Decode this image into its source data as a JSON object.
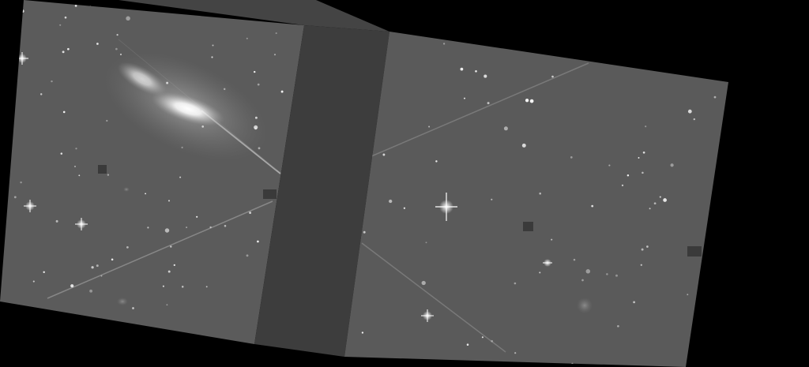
{
  "image": {
    "kind": "astronomical survey image (two rotated detector panels with gap)",
    "background_color": "#000000",
    "panel_color": "#5a5a5a",
    "gap_color": "#3c3c3c",
    "galaxy_color": "#ffffff"
  }
}
